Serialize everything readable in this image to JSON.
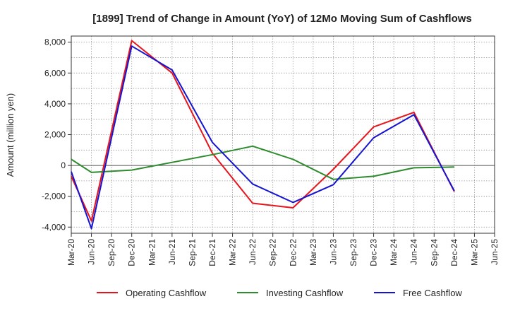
{
  "chart_data": {
    "type": "line",
    "title": "[1899]  Trend of Change in Amount (YoY) of 12Mo Moving Sum of Cashflows",
    "ylabel": "Amount (million yen)",
    "xlabel": "",
    "ylim": [
      -4400,
      8400
    ],
    "yticks": [
      -4000,
      -2000,
      0,
      2000,
      4000,
      6000,
      8000
    ],
    "ytick_labels": [
      "-4,000",
      "-2,000",
      "0",
      "2,000",
      "4,000",
      "6,000",
      "8,000"
    ],
    "x_tick_labels": [
      "Mar-20",
      "Jun-20",
      "Sep-20",
      "Dec-20",
      "Mar-21",
      "Jun-21",
      "Sep-21",
      "Dec-21",
      "Mar-22",
      "Jun-22",
      "Sep-22",
      "Dec-22",
      "Mar-23",
      "Jun-23",
      "Sep-23",
      "Dec-23",
      "Mar-24",
      "Jun-24",
      "Sep-24",
      "Dec-24",
      "Mar-25",
      "Jun-25"
    ],
    "grid": true,
    "legend_position": "bottom",
    "series": [
      {
        "name": "Operating Cashflow",
        "color": "#e8141b",
        "points": [
          [
            0,
            -700
          ],
          [
            1,
            -3600
          ],
          [
            3,
            8100
          ],
          [
            5,
            6000
          ],
          [
            7,
            800
          ],
          [
            9,
            -2450
          ],
          [
            11,
            -2750
          ],
          [
            13,
            -250
          ],
          [
            15,
            2500
          ],
          [
            17,
            3450
          ],
          [
            19,
            -1700
          ]
        ]
      },
      {
        "name": "Investing Cashflow",
        "color": "#2e8b2e",
        "points": [
          [
            0,
            400
          ],
          [
            1,
            -450
          ],
          [
            3,
            -300
          ],
          [
            5,
            200
          ],
          [
            7,
            700
          ],
          [
            9,
            1250
          ],
          [
            11,
            400
          ],
          [
            13,
            -900
          ],
          [
            15,
            -700
          ],
          [
            17,
            -150
          ],
          [
            19,
            -100
          ]
        ]
      },
      {
        "name": "Free Cashflow",
        "color": "#1414d2",
        "points": [
          [
            0,
            -400
          ],
          [
            1,
            -4100
          ],
          [
            3,
            7750
          ],
          [
            5,
            6200
          ],
          [
            7,
            1500
          ],
          [
            9,
            -1200
          ],
          [
            11,
            -2400
          ],
          [
            13,
            -1250
          ],
          [
            15,
            1800
          ],
          [
            17,
            3300
          ],
          [
            19,
            -1650
          ]
        ]
      }
    ]
  }
}
